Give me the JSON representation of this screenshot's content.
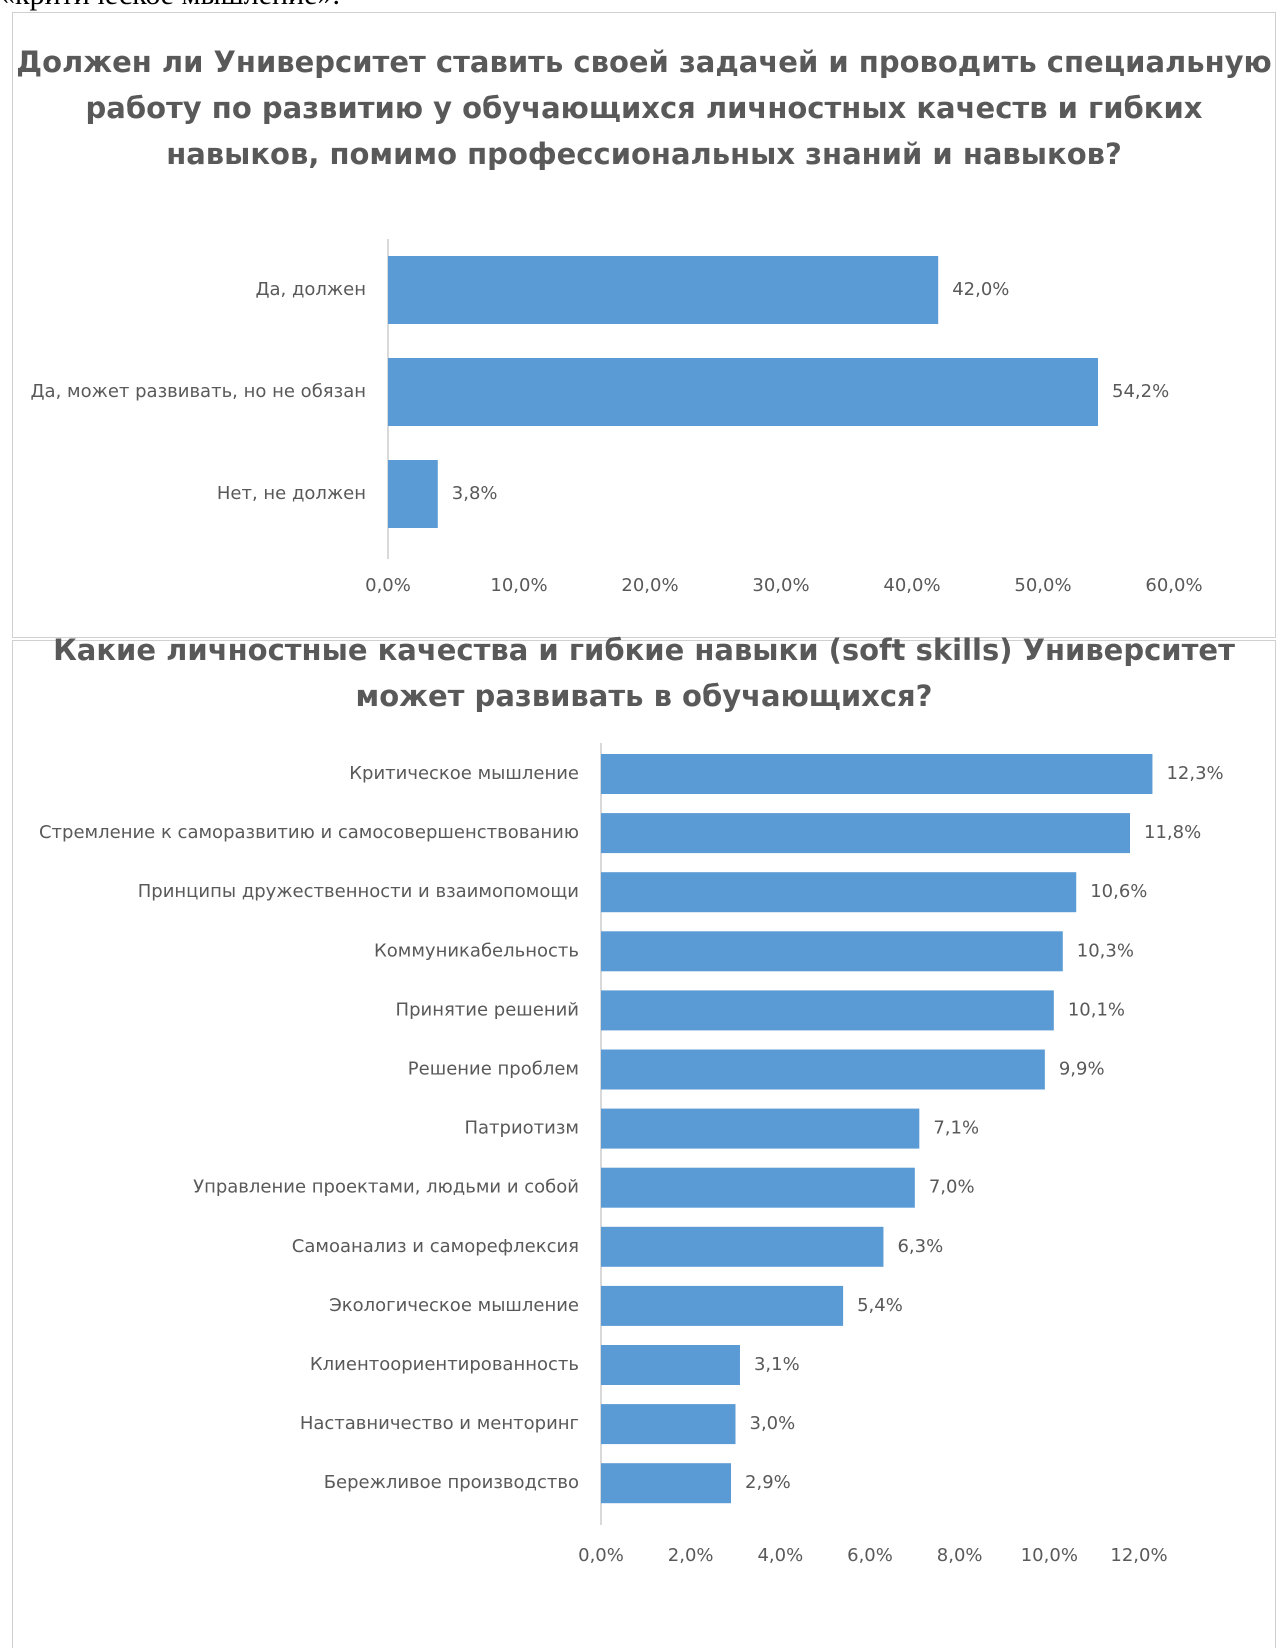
{
  "document": {
    "caption_fragment": "«критическое мышление»."
  },
  "colors": {
    "bar": "#5b9bd5",
    "text": "#595959",
    "axis": "#d9d9d9"
  },
  "chart_data": [
    {
      "type": "bar",
      "orientation": "horizontal",
      "title": "Должен ли Университет ставить своей задачей и проводить специальную работу по развитию у обучающихся личностных качеств и гибких навыков, помимо профессиональных знаний и навыков?",
      "categories": [
        "Да, должен",
        "Да, может развивать, но не обязан",
        "Нет,  не должен"
      ],
      "values": [
        42.0,
        54.2,
        3.8
      ],
      "value_labels": [
        "42,0%",
        "54,2%",
        "3,8%"
      ],
      "xlim": [
        0,
        60
      ],
      "ticks": [
        "0,0%",
        "10,0%",
        "20,0%",
        "30,0%",
        "40,0%",
        "50,0%",
        "60,0%"
      ],
      "grid": false
    },
    {
      "type": "bar",
      "orientation": "horizontal",
      "title": "Какие личностные качества и гибкие навыки (soft skills) Университет может развивать в обучающихся?",
      "categories": [
        "Критическое мышление",
        "Стремление к саморазвитию и самосовершенствованию",
        "Принципы дружественности и взаимопомощи",
        "Коммуникабельность",
        "Принятие решений",
        "Решение проблем",
        "Патриотизм",
        "Управление проектами, людьми и собой",
        "Самоанализ и саморефлексия",
        "Экологическое мышление",
        "Клиентоориентированность",
        "Наставничество и менторинг",
        "Бережливое производство"
      ],
      "values": [
        12.3,
        11.8,
        10.6,
        10.3,
        10.1,
        9.9,
        7.1,
        7.0,
        6.3,
        5.4,
        3.1,
        3.0,
        2.9
      ],
      "value_labels": [
        "12,3%",
        "11,8%",
        "10,6%",
        "10,3%",
        "10,1%",
        "9,9%",
        "7,1%",
        "7,0%",
        "6,3%",
        "5,4%",
        "3,1%",
        "3,0%",
        "2,9%"
      ],
      "xlim": [
        0,
        12
      ],
      "ticks": [
        "0,0%",
        "2,0%",
        "4,0%",
        "6,0%",
        "8,0%",
        "10,0%",
        "12,0%"
      ],
      "grid": false
    }
  ]
}
